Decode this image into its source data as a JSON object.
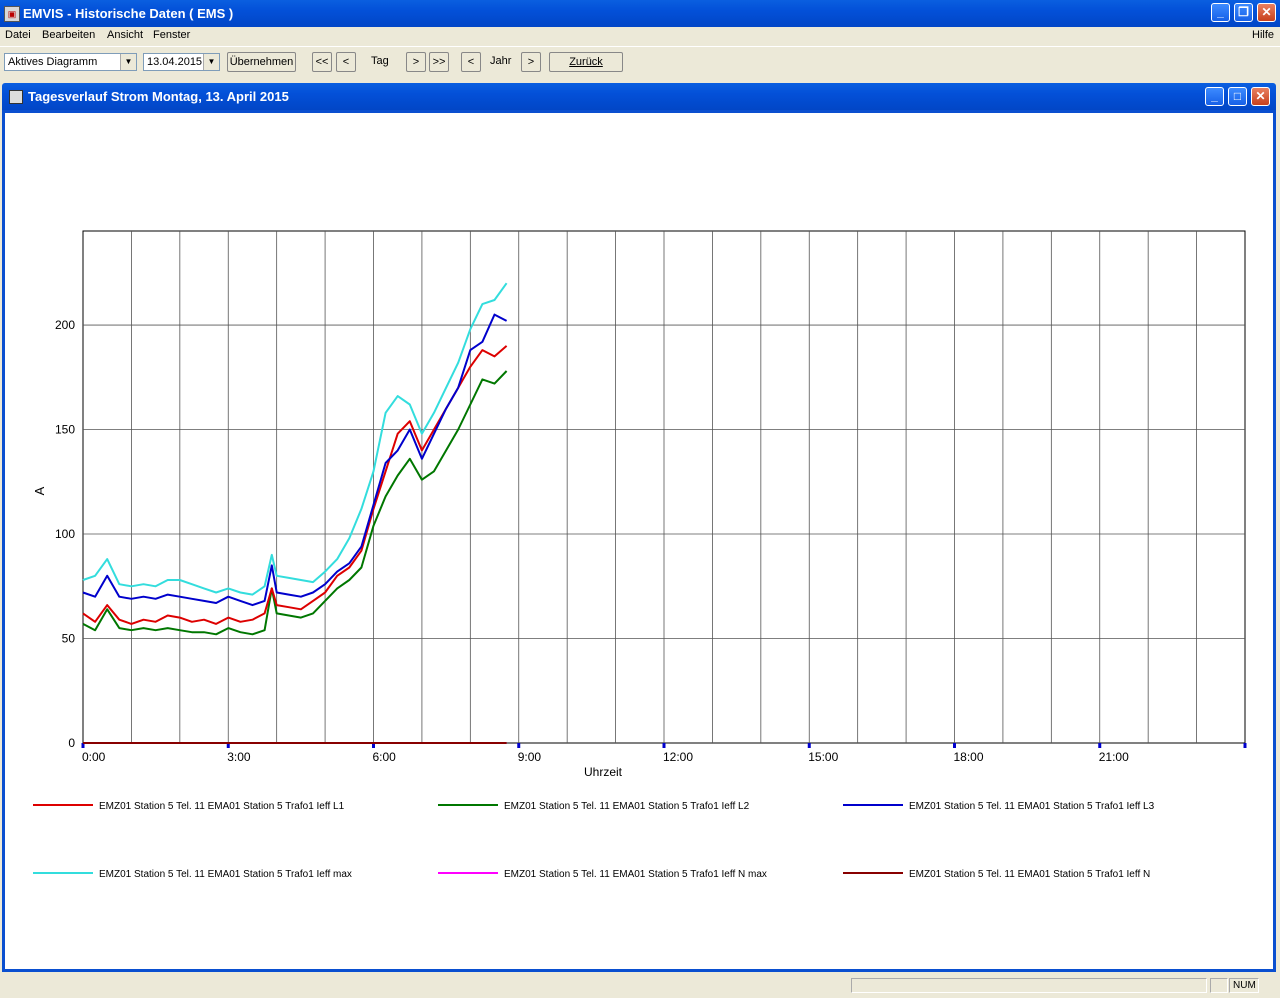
{
  "window": {
    "title": "EMVIS - Historische Daten  ( EMS )"
  },
  "menu": [
    "Datei",
    "Bearbeiten",
    "Ansicht",
    "Fenster"
  ],
  "menu_right": "Hilfe",
  "toolbar": {
    "diagram_select": "Aktives Diagramm",
    "date_value": "13.04.2015",
    "apply_label": "Übernehmen",
    "first_label": "<<",
    "prev_label": "<",
    "tag_label": "Tag",
    "next_label": ">",
    "last_label": ">>",
    "year_prev_label": "<",
    "year_label": "Jahr",
    "year_next_label": ">",
    "back_label": "Zurück"
  },
  "child": {
    "title": "Tagesverlauf Strom  Montag, 13. April 2015"
  },
  "status": {
    "num": "NUM"
  },
  "chart_data": {
    "type": "line",
    "ylabel": "A",
    "xlabel": "Uhrzeit",
    "ylim": [
      0,
      245
    ],
    "xlim": [
      0,
      24
    ],
    "yticks": [
      0,
      50,
      100,
      150,
      200
    ],
    "xticks": [
      0,
      3,
      6,
      9,
      12,
      15,
      18,
      21
    ],
    "xtick_labels": [
      "0:00",
      "3:00",
      "6:00",
      "9:00",
      "12:00",
      "15:00",
      "18:00",
      "21:00"
    ],
    "grid": true,
    "legend": "bottom",
    "x": [
      0,
      0.25,
      0.5,
      0.75,
      1,
      1.25,
      1.5,
      1.75,
      2,
      2.25,
      2.5,
      2.75,
      3,
      3.25,
      3.5,
      3.75,
      3.9,
      4,
      4.25,
      4.5,
      4.75,
      5,
      5.25,
      5.5,
      5.75,
      6,
      6.25,
      6.5,
      6.75,
      7,
      7.25,
      7.5,
      7.75,
      8,
      8.25,
      8.5,
      8.75
    ],
    "series": [
      {
        "name": "EMZ01 Station 5 Tel. 11 EMA01 Station 5 Trafo1 Ieff L1",
        "color": "#dd0000",
        "values": [
          62,
          58,
          66,
          59,
          57,
          59,
          58,
          61,
          60,
          58,
          59,
          57,
          60,
          58,
          59,
          62,
          74,
          66,
          65,
          64,
          68,
          72,
          80,
          84,
          92,
          112,
          130,
          148,
          154,
          140,
          150,
          160,
          170,
          180,
          188,
          185,
          190
        ]
      },
      {
        "name": "EMZ01 Station 5 Tel. 11 EMA01 Station 5 Trafo1 Ieff L2",
        "color": "#007700",
        "values": [
          57,
          54,
          64,
          55,
          54,
          55,
          54,
          55,
          54,
          53,
          53,
          52,
          55,
          53,
          52,
          54,
          74,
          62,
          61,
          60,
          62,
          68,
          74,
          78,
          84,
          104,
          118,
          128,
          136,
          126,
          130,
          140,
          150,
          162,
          174,
          172,
          178
        ]
      },
      {
        "name": "EMZ01 Station 5 Tel. 11 EMA01 Station 5 Trafo1 Ieff L3",
        "color": "#0000cc",
        "values": [
          72,
          70,
          80,
          70,
          69,
          70,
          69,
          71,
          70,
          69,
          68,
          67,
          70,
          68,
          66,
          68,
          85,
          72,
          71,
          70,
          72,
          76,
          82,
          86,
          94,
          114,
          134,
          140,
          150,
          136,
          148,
          160,
          170,
          188,
          192,
          205,
          202
        ]
      },
      {
        "name": "EMZ01 Station 5 Tel. 11 EMA01 Station 5 Trafo1 Ieff max",
        "color": "#33dddd",
        "values": [
          78,
          80,
          88,
          76,
          75,
          76,
          75,
          78,
          78,
          76,
          74,
          72,
          74,
          72,
          71,
          75,
          90,
          80,
          79,
          78,
          77,
          82,
          88,
          98,
          112,
          130,
          158,
          166,
          162,
          148,
          158,
          170,
          182,
          198,
          210,
          212,
          220
        ]
      },
      {
        "name": "EMZ01 Station 5 Tel. 11 EMA01 Station 5 Trafo1 Ieff N max",
        "color": "#ff00ff",
        "values": [
          0,
          0,
          0,
          0,
          0,
          0,
          0,
          0,
          0,
          0,
          0,
          0,
          0,
          0,
          0,
          0,
          0,
          0,
          0,
          0,
          0,
          0,
          0,
          0,
          0,
          0,
          0,
          0,
          0,
          0,
          0,
          0,
          0,
          0,
          0,
          0,
          0
        ]
      },
      {
        "name": "EMZ01 Station 5 Tel. 11 EMA01 Station 5 Trafo1 Ieff N",
        "color": "#880000",
        "values": [
          0,
          0,
          0,
          0,
          0,
          0,
          0,
          0,
          0,
          0,
          0,
          0,
          0,
          0,
          0,
          0,
          0,
          0,
          0,
          0,
          0,
          0,
          0,
          0,
          0,
          0,
          0,
          0,
          0,
          0,
          0,
          0,
          0,
          0,
          0,
          0,
          0
        ]
      }
    ]
  }
}
